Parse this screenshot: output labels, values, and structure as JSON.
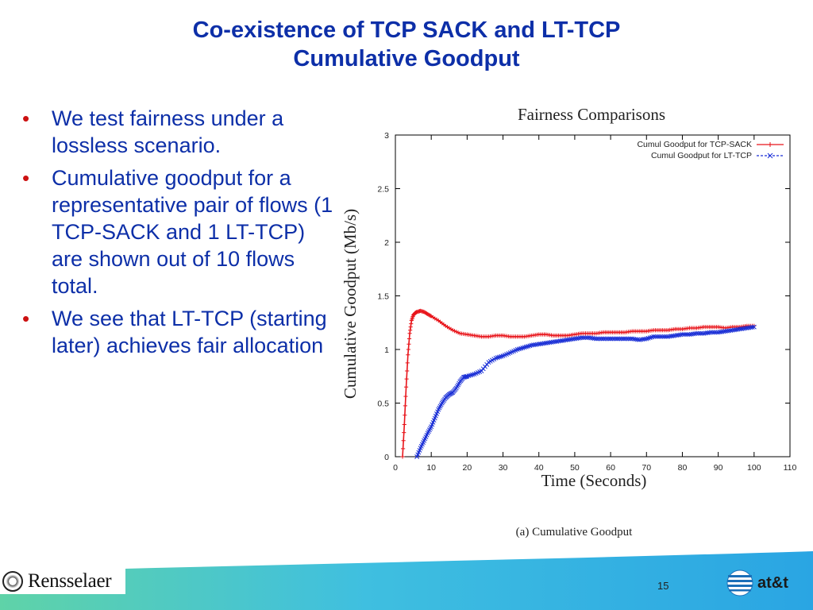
{
  "slide": {
    "title_line1": "Co-existence of TCP SACK and LT-TCP",
    "title_line2": "Cumulative Goodput",
    "bullets": [
      "We test fairness under a lossless scenario.",
      "Cumulative goodput for a representative pair of flows (1 TCP-SACK and 1 LT-TCP) are shown out of 10 flows total.",
      "We see that LT-TCP (starting later) achieves fair allocation"
    ],
    "bullet_symbol": "•",
    "page_number": "15"
  },
  "footer": {
    "left_logo_text": "Rensselaer",
    "right_logo_text": "at&t"
  },
  "colors": {
    "title": "#0d2fa8",
    "bullet_text": "#0d2fa8",
    "bullet_dot": "#cc1111",
    "series_sack": "#e8151b",
    "series_lt": "#1a2fd6",
    "footer_band": "#2fb6e0"
  },
  "chart_data": {
    "type": "line",
    "title": "Fairness Comparisons",
    "xlabel": "Time (Seconds)",
    "ylabel": "Cumulative Goodput (Mb/s)",
    "caption": "(a) Cumulative Goodput",
    "xlim": [
      0,
      110
    ],
    "ylim": [
      0,
      3
    ],
    "xticks": [
      "0",
      "10",
      "20",
      "30",
      "40",
      "50",
      "60",
      "70",
      "80",
      "90",
      "100",
      "110"
    ],
    "yticks": [
      "0",
      "0.5",
      "1",
      "1.5",
      "2",
      "2.5",
      "3"
    ],
    "legend_position": "top-right",
    "grid": false,
    "series": [
      {
        "name": "Cumul Goodput for TCP-SACK",
        "marker": "+",
        "x": [
          2,
          2.5,
          3,
          3.5,
          4,
          4.5,
          5,
          5.5,
          6,
          7,
          8,
          9,
          10,
          12,
          14,
          16,
          18,
          20,
          22,
          24,
          26,
          28,
          30,
          32,
          34,
          36,
          38,
          40,
          42,
          44,
          46,
          48,
          50,
          52,
          54,
          56,
          58,
          60,
          62,
          64,
          66,
          68,
          70,
          72,
          74,
          76,
          78,
          80,
          82,
          84,
          86,
          88,
          90,
          92,
          94,
          96,
          98,
          100
        ],
        "y": [
          0.0,
          0.3,
          0.65,
          0.95,
          1.15,
          1.27,
          1.32,
          1.34,
          1.35,
          1.36,
          1.35,
          1.33,
          1.31,
          1.27,
          1.22,
          1.18,
          1.15,
          1.14,
          1.13,
          1.12,
          1.12,
          1.13,
          1.13,
          1.12,
          1.12,
          1.12,
          1.13,
          1.14,
          1.14,
          1.13,
          1.13,
          1.13,
          1.14,
          1.15,
          1.15,
          1.15,
          1.16,
          1.16,
          1.16,
          1.16,
          1.17,
          1.17,
          1.17,
          1.18,
          1.18,
          1.18,
          1.19,
          1.19,
          1.2,
          1.2,
          1.21,
          1.21,
          1.21,
          1.2,
          1.21,
          1.21,
          1.22,
          1.22
        ]
      },
      {
        "name": "Cumul Goodput for LT-TCP",
        "marker": "x",
        "x": [
          6,
          7,
          8,
          9,
          10,
          11,
          12,
          13,
          14,
          15,
          16,
          17,
          18,
          19,
          20,
          22,
          24,
          26,
          28,
          30,
          32,
          34,
          36,
          38,
          40,
          42,
          44,
          46,
          48,
          50,
          52,
          54,
          56,
          58,
          60,
          62,
          64,
          66,
          68,
          70,
          72,
          74,
          76,
          78,
          80,
          82,
          84,
          86,
          88,
          90,
          92,
          94,
          96,
          98,
          100
        ],
        "y": [
          0.0,
          0.08,
          0.15,
          0.22,
          0.28,
          0.36,
          0.44,
          0.5,
          0.55,
          0.58,
          0.6,
          0.64,
          0.7,
          0.74,
          0.75,
          0.77,
          0.8,
          0.88,
          0.92,
          0.94,
          0.97,
          1.0,
          1.02,
          1.04,
          1.05,
          1.06,
          1.07,
          1.08,
          1.09,
          1.1,
          1.11,
          1.11,
          1.1,
          1.1,
          1.1,
          1.1,
          1.1,
          1.1,
          1.09,
          1.1,
          1.12,
          1.12,
          1.12,
          1.13,
          1.14,
          1.14,
          1.15,
          1.15,
          1.16,
          1.16,
          1.17,
          1.18,
          1.19,
          1.2,
          1.21
        ]
      }
    ]
  }
}
